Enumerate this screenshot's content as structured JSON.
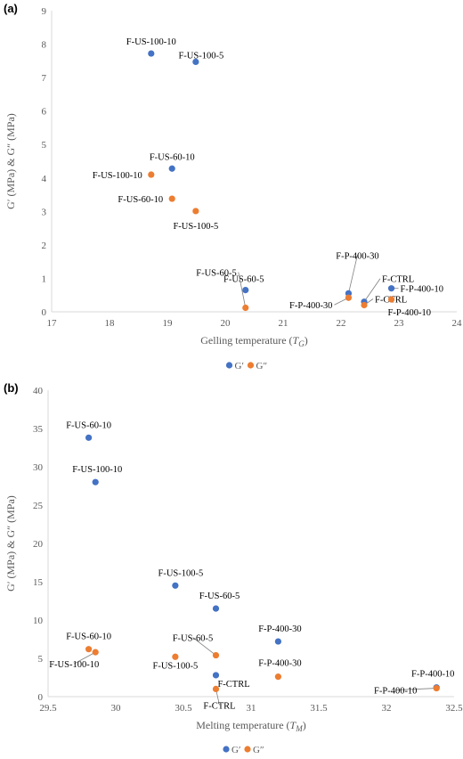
{
  "chart_data": [
    {
      "panel": "(a)",
      "type": "scatter",
      "xlabel_main": "Gelling temperature (",
      "xlabel_sym": "T",
      "xlabel_sub": "G",
      "xlabel_end": ")",
      "ylabel": "G′ (MPa) & G″ (MPa)",
      "xlim": [
        17,
        24
      ],
      "ylim": [
        0,
        9
      ],
      "xticks": [
        17,
        18,
        19,
        20,
        21,
        22,
        23,
        24
      ],
      "yticks": [
        0,
        1,
        2,
        3,
        4,
        5,
        6,
        7,
        8,
        9
      ],
      "legend_position": "bottom",
      "grid": false,
      "series": [
        {
          "name": "G′",
          "color": "#4472c4",
          "points": [
            {
              "label": "F-US-100-10",
              "x": 18.72,
              "y": 7.72
            },
            {
              "label": "F-US-100-5",
              "x": 19.49,
              "y": 7.47
            },
            {
              "label": "F-US-60-10",
              "x": 19.08,
              "y": 4.28
            },
            {
              "label": "F-US-60-5",
              "x": 20.35,
              "y": 0.65
            },
            {
              "label": "F-P-400-30",
              "x": 22.13,
              "y": 0.55
            },
            {
              "label": "F-CTRL",
              "x": 22.4,
              "y": 0.3
            },
            {
              "label": "F-P-400-10",
              "x": 22.87,
              "y": 0.7
            }
          ]
        },
        {
          "name": "G″",
          "color": "#ed7d31",
          "points": [
            {
              "label": "F-US-100-10",
              "x": 18.72,
              "y": 4.1
            },
            {
              "label": "F-US-60-10",
              "x": 19.08,
              "y": 3.38
            },
            {
              "label": "F-US-100-5",
              "x": 19.49,
              "y": 3.01
            },
            {
              "label": "F-US-60-5",
              "x": 20.35,
              "y": 0.12
            },
            {
              "label": "F-P-400-30",
              "x": 22.13,
              "y": 0.42
            },
            {
              "label": "F-CTRL",
              "x": 22.4,
              "y": 0.2
            },
            {
              "label": "F-P-400-10",
              "x": 22.87,
              "y": 0.37
            }
          ]
        }
      ]
    },
    {
      "panel": "(b)",
      "type": "scatter",
      "xlabel_main": "Melting temperature (",
      "xlabel_sym": "T",
      "xlabel_sub": "M",
      "xlabel_end": ")",
      "ylabel": "G′ (MPa) & G″ (MPa)",
      "xlim": [
        29.5,
        32.5
      ],
      "ylim": [
        0,
        40
      ],
      "xticks": [
        29.5,
        30,
        30.5,
        31,
        31.5,
        32,
        32.5
      ],
      "yticks": [
        0,
        5,
        10,
        15,
        20,
        25,
        30,
        35,
        40
      ],
      "legend_position": "bottom",
      "grid": false,
      "series": [
        {
          "name": "G′",
          "color": "#4472c4",
          "points": [
            {
              "label": "F-US-60-10",
              "x": 29.8,
              "y": 33.8
            },
            {
              "label": "F-US-100-10",
              "x": 29.85,
              "y": 28
            },
            {
              "label": "F-US-100-5",
              "x": 30.44,
              "y": 14.5
            },
            {
              "label": "F-US-60-5",
              "x": 30.74,
              "y": 11.5
            },
            {
              "label": "F-P-400-30",
              "x": 31.2,
              "y": 7.2
            },
            {
              "label": "F-CTRL",
              "x": 30.74,
              "y": 2.8
            },
            {
              "label": "F-P-400-10",
              "x": 32.37,
              "y": 1.2
            }
          ]
        },
        {
          "name": "G″",
          "color": "#ed7d31",
          "points": [
            {
              "label": "F-US-60-10",
              "x": 29.8,
              "y": 6.2
            },
            {
              "label": "F-US-100-10",
              "x": 29.85,
              "y": 5.8
            },
            {
              "label": "F-US-100-5",
              "x": 30.44,
              "y": 5.2
            },
            {
              "label": "F-US-60-5",
              "x": 30.74,
              "y": 5.4
            },
            {
              "label": "F-P-400-30",
              "x": 31.2,
              "y": 2.6
            },
            {
              "label": "F-CTRL",
              "x": 30.74,
              "y": 1.0
            },
            {
              "label": "F-P-400-10",
              "x": 32.37,
              "y": 1.1
            }
          ]
        }
      ]
    }
  ]
}
